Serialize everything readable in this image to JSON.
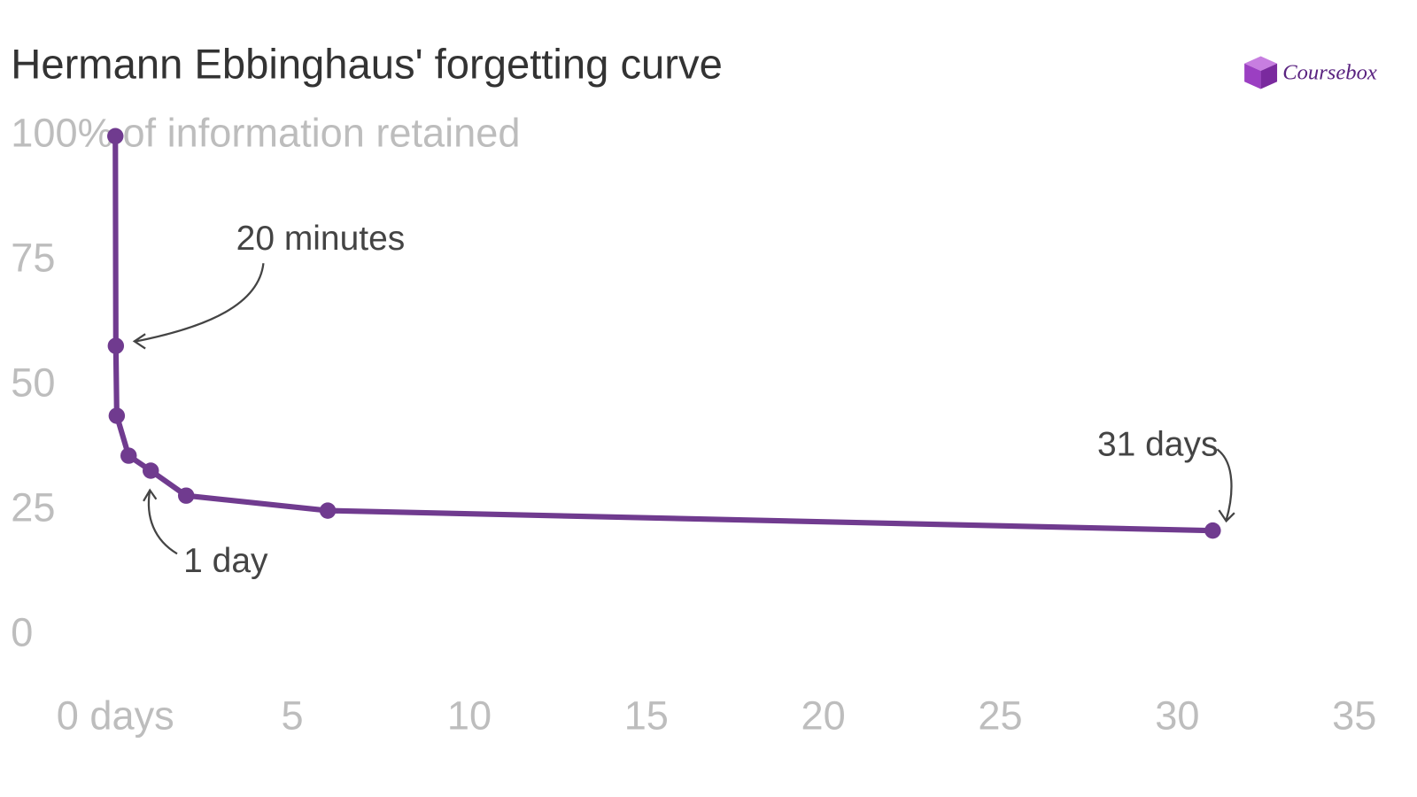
{
  "brand": "Coursebox",
  "chart_data": {
    "type": "line",
    "title": "Hermann Ebbinghaus' forgetting curve",
    "subtitle": "of information retained",
    "x": [
      0,
      0.014,
      0.04,
      0.375,
      1,
      2,
      6,
      31
    ],
    "values": [
      100,
      58,
      44,
      36,
      33,
      28,
      25,
      21
    ],
    "color": "#703b8f",
    "xlim": [
      0,
      35
    ],
    "xticks": [
      {
        "value": 0,
        "label": "0 days"
      },
      5,
      10,
      15,
      20,
      25,
      30,
      35
    ],
    "ylim": [
      0,
      100
    ],
    "yticks": [
      0,
      25,
      50,
      75,
      {
        "value": 100,
        "label": "100%"
      }
    ],
    "grid": false,
    "annotations": [
      {
        "text": "20 minutes"
      },
      {
        "text": "1 day"
      },
      {
        "text": "31 days"
      }
    ]
  }
}
